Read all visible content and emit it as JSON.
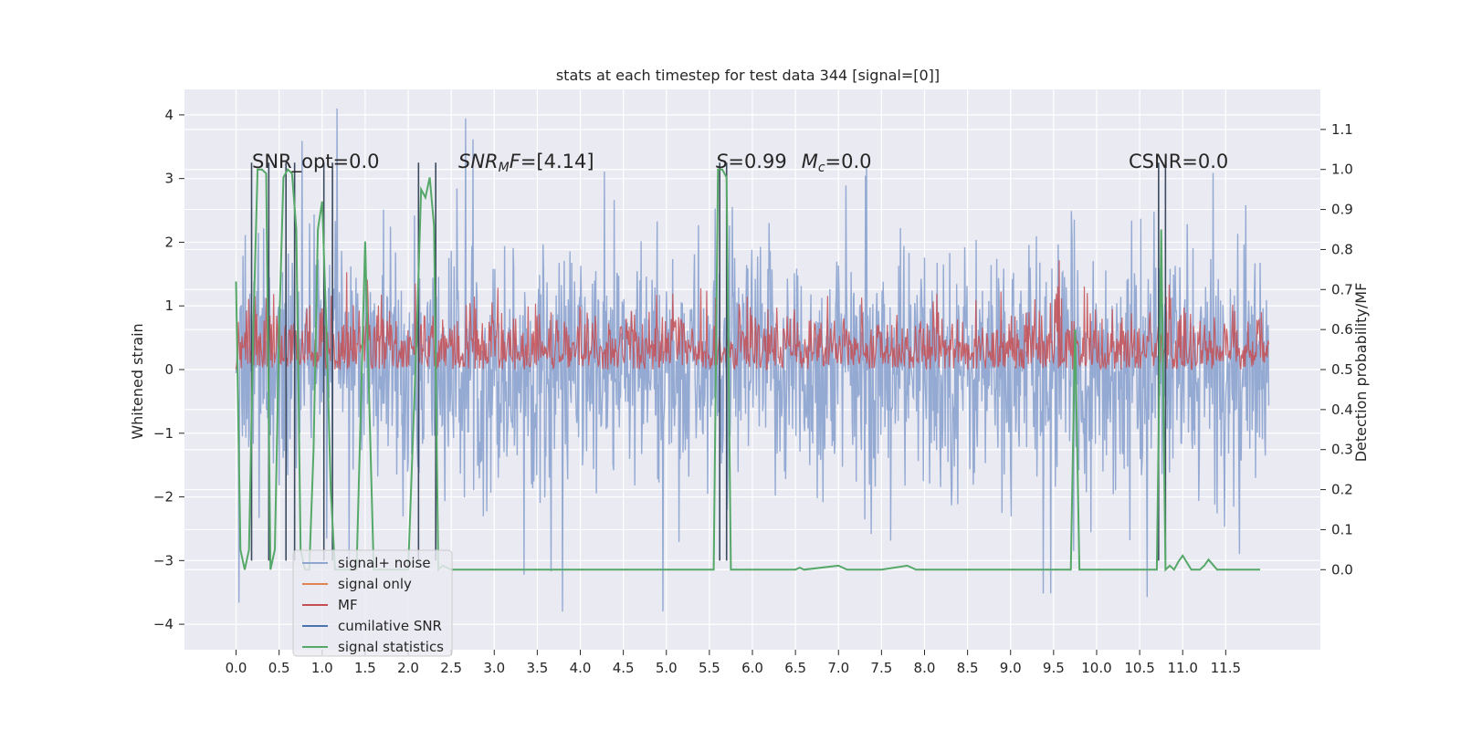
{
  "chart_data": {
    "type": "line",
    "title": "stats at each timestep for test data 344 [signal=[0]]",
    "xlabel": "",
    "ylabel": "Whitened strain",
    "y2label": "Detection probability/MF",
    "xlim": [
      -0.6,
      12.6
    ],
    "ylim": [
      -4.4,
      4.4
    ],
    "y2lim": [
      -0.2,
      1.2
    ],
    "x_ticks": [
      "0.0",
      "0.5",
      "1.0",
      "1.5",
      "2.0",
      "2.5",
      "3.0",
      "3.5",
      "4.0",
      "4.5",
      "5.0",
      "5.5",
      "6.0",
      "6.5",
      "7.0",
      "7.5",
      "8.0",
      "8.5",
      "9.0",
      "9.5",
      "10.0",
      "10.5",
      "11.0",
      "11.5"
    ],
    "y_ticks": [
      "4",
      "3",
      "2",
      "1",
      "0",
      "−1",
      "−2",
      "−3",
      "−4"
    ],
    "y2_ticks": [
      "1.1",
      "1.0",
      "0.9",
      "0.8",
      "0.7",
      "0.6",
      "0.5",
      "0.4",
      "0.3",
      "0.2",
      "0.1",
      "0.0"
    ],
    "grid": true,
    "legend_placement": "lower-left",
    "annotations": {
      "snr_opt": "SNR_opt=0.0",
      "snr_mf": {
        "base": "SNR",
        "sub": "M",
        "tail": "F=[4.14]"
      },
      "stat": {
        "s_label": "S",
        "s_tail": "=0.99",
        "m_label": "M",
        "m_sub": "c",
        "m_tail": "=0.0"
      },
      "csnr": "CSNR=0.0"
    },
    "series": [
      {
        "name": "signal+ noise",
        "color": "#8fa6d1",
        "axis": "left",
        "x_range": [
          0.0,
          12.0
        ],
        "amplitude_band": {
          "core": [
            -2.0,
            2.0
          ],
          "peaks": [
            -3.8,
            4.1
          ]
        }
      },
      {
        "name": "signal only",
        "color": "#dd8452",
        "axis": "left",
        "values_note": ""
      },
      {
        "name": "MF",
        "color": "#c44e52",
        "axis": "right",
        "x_range": [
          0.0,
          12.0
        ],
        "level_band": [
          0.5,
          0.63
        ]
      },
      {
        "name": "cumilative SNR",
        "color": "#4c72b0",
        "axis": "left",
        "spikes_x": [
          0.18,
          0.38,
          0.58,
          0.68,
          1.02,
          1.12,
          2.12,
          2.32,
          5.62,
          5.7,
          10.72,
          10.8
        ],
        "spike_top": 3.25,
        "base": -3.0
      },
      {
        "name": "signal statistics",
        "color": "#55a868",
        "axis": "right",
        "x": [
          0.0,
          0.05,
          0.1,
          0.15,
          0.2,
          0.25,
          0.3,
          0.35,
          0.4,
          0.45,
          0.5,
          0.55,
          0.6,
          0.65,
          0.7,
          0.75,
          0.8,
          0.85,
          0.9,
          0.95,
          1.0,
          1.05,
          1.1,
          1.15,
          1.2,
          1.3,
          1.4,
          1.5,
          1.55,
          1.6,
          1.7,
          1.8,
          1.9,
          2.0,
          2.1,
          2.15,
          2.2,
          2.25,
          2.3,
          2.35,
          2.4,
          2.5,
          2.7,
          3.0,
          4.0,
          5.0,
          5.55,
          5.6,
          5.65,
          5.7,
          5.75,
          6.0,
          6.5,
          6.55,
          6.6,
          7.0,
          7.1,
          7.5,
          7.8,
          7.9,
          8.5,
          9.0,
          9.5,
          9.7,
          9.75,
          9.8,
          9.85,
          10.0,
          10.5,
          10.65,
          10.7,
          10.75,
          10.8,
          10.85,
          10.9,
          10.95,
          11.0,
          11.1,
          11.2,
          11.25,
          11.3,
          11.4,
          11.5,
          11.9
        ],
        "values": [
          0.72,
          0.05,
          0.0,
          0.05,
          0.6,
          1.0,
          1.0,
          0.99,
          0.0,
          0.05,
          0.6,
          0.98,
          1.0,
          0.99,
          0.85,
          0.05,
          0.0,
          0.0,
          0.3,
          0.85,
          0.92,
          0.6,
          0.2,
          0.0,
          0.0,
          0.0,
          0.0,
          0.82,
          0.4,
          0.0,
          0.0,
          0.0,
          0.0,
          0.0,
          0.6,
          0.95,
          0.93,
          0.98,
          0.86,
          0.0,
          0.01,
          0.0,
          0.0,
          0.0,
          0.0,
          0.0,
          0.0,
          1.0,
          1.0,
          0.98,
          0.0,
          0.0,
          0.0,
          0.005,
          0.0,
          0.01,
          0.0,
          0.0,
          0.01,
          0.0,
          0.0,
          0.0,
          0.0,
          0.0,
          0.6,
          0.0,
          0.0,
          0.0,
          0.0,
          0.0,
          0.0,
          0.85,
          0.0,
          0.01,
          0.0,
          0.02,
          0.035,
          0.0,
          0.0,
          0.01,
          0.025,
          0.0,
          0.0,
          0.0
        ]
      }
    ]
  }
}
